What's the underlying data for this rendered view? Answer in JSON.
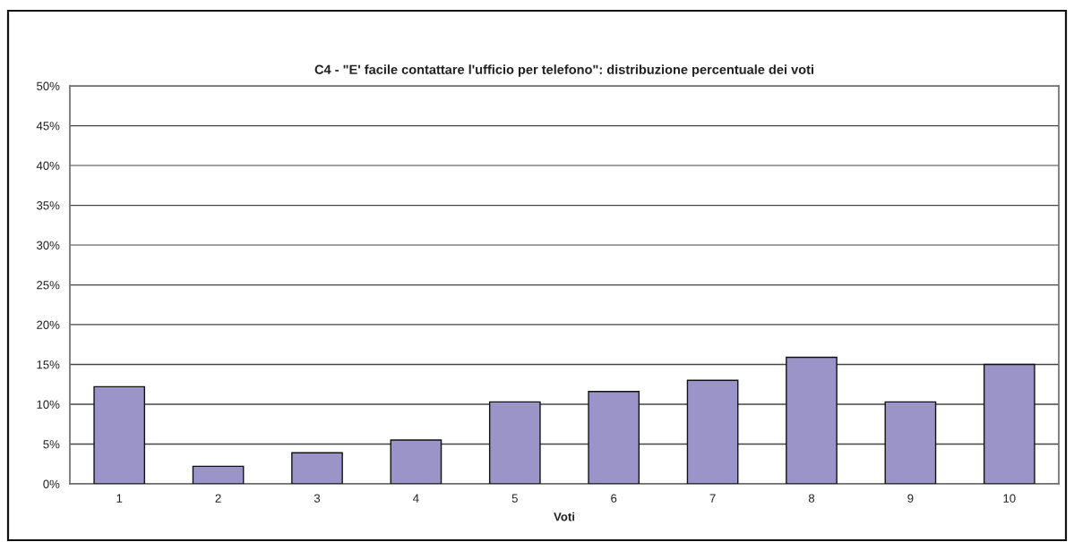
{
  "chart_data": {
    "type": "bar",
    "title": "C4 - \"E' facile contattare l'ufficio per telefono\": distribuzione percentuale dei voti",
    "xlabel": "Voti",
    "categories": [
      "1",
      "2",
      "3",
      "4",
      "5",
      "6",
      "7",
      "8",
      "9",
      "10"
    ],
    "values": [
      12.2,
      2.2,
      3.9,
      5.5,
      10.3,
      11.6,
      13.0,
      15.9,
      10.3,
      15.0
    ],
    "color": "#9a94c8",
    "ylim": [
      0,
      50
    ],
    "yticks": [
      {
        "value": 0,
        "label": "0%"
      },
      {
        "value": 5,
        "label": "5%"
      },
      {
        "value": 10,
        "label": "10%"
      },
      {
        "value": 15,
        "label": "15%"
      },
      {
        "value": 20,
        "label": "20%"
      },
      {
        "value": 25,
        "label": "25%"
      },
      {
        "value": 30,
        "label": "30%"
      },
      {
        "value": 35,
        "label": "35%"
      },
      {
        "value": 40,
        "label": "40%"
      },
      {
        "value": 45,
        "label": "45%"
      },
      {
        "value": 50,
        "label": "50%"
      }
    ],
    "grid": "y",
    "legend": false
  }
}
